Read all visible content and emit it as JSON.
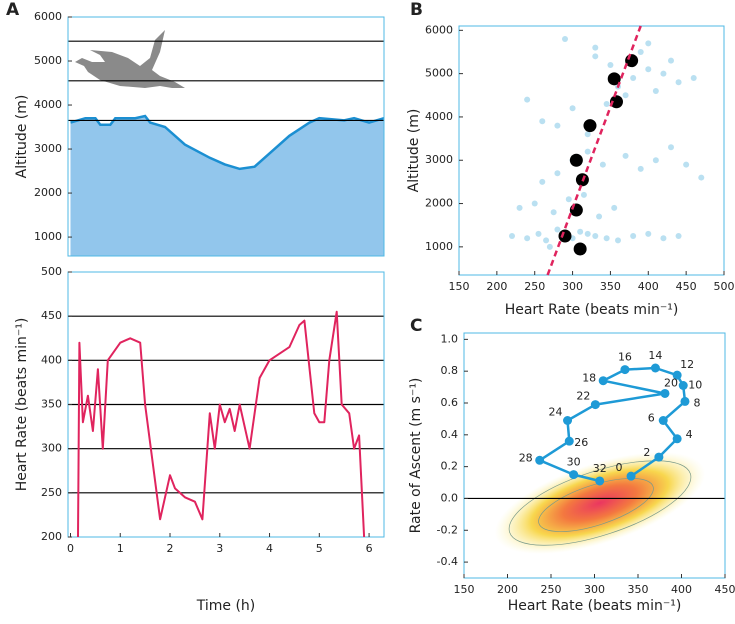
{
  "chart_data": [
    {
      "type": "area",
      "panel": "A",
      "ylabel": "Altitude (m)",
      "x": [
        0,
        0.3,
        0.5,
        0.6,
        0.8,
        0.9,
        1.3,
        1.5,
        1.6,
        1.9,
        2.3,
        2.8,
        3.1,
        3.4,
        3.7,
        4.0,
        4.4,
        4.8,
        5.0,
        5.5,
        5.7,
        6.0,
        6.3
      ],
      "values": [
        3600,
        3700,
        3700,
        3550,
        3550,
        3700,
        3700,
        3750,
        3600,
        3500,
        3100,
        2800,
        2650,
        2550,
        2600,
        2900,
        3300,
        3600,
        3700,
        3650,
        3700,
        3600,
        3700
      ],
      "color": "#92c6ec",
      "line_color": "#1b8fd2",
      "xlim": [
        -0.05,
        6.3
      ],
      "ylim": [
        570,
        6000
      ],
      "yticks": [
        1000,
        2000,
        3000,
        4000,
        5000,
        6000
      ],
      "hlines": [
        3650,
        4550,
        5450
      ]
    },
    {
      "type": "line",
      "ylabel": "Heart Rate (beats min⁻¹)",
      "xlabel": "Time (h)",
      "x": [
        0.15,
        0.18,
        0.25,
        0.35,
        0.45,
        0.55,
        0.65,
        0.75,
        1.0,
        1.2,
        1.4,
        1.5,
        1.8,
        2.0,
        2.1,
        2.3,
        2.5,
        2.65,
        2.8,
        2.9,
        3.0,
        3.1,
        3.2,
        3.3,
        3.4,
        3.6,
        3.8,
        4.0,
        4.4,
        4.6,
        4.7,
        4.9,
        5.0,
        5.1,
        5.2,
        5.35,
        5.45,
        5.6,
        5.7,
        5.8,
        5.9
      ],
      "values": [
        200,
        420,
        330,
        360,
        320,
        390,
        300,
        400,
        420,
        425,
        420,
        350,
        220,
        270,
        255,
        245,
        240,
        220,
        340,
        300,
        350,
        330,
        345,
        320,
        350,
        300,
        380,
        400,
        415,
        440,
        445,
        340,
        330,
        330,
        400,
        455,
        350,
        340,
        300,
        315,
        200
      ],
      "color": "#e0245e",
      "xlim": [
        -0.05,
        6.3
      ],
      "ylim": [
        200,
        500
      ],
      "xticks": [
        0,
        1,
        2,
        3,
        4,
        5,
        6
      ],
      "yticks": [
        200,
        250,
        300,
        350,
        400,
        450,
        500
      ],
      "hlines": [
        250,
        300,
        350,
        400,
        450
      ]
    },
    {
      "type": "scatter",
      "panel": "B",
      "ylabel": "Altitude (m)",
      "xlabel": "Heart Rate (beats min⁻¹)",
      "series": [
        {
          "color": "#3aa6d8",
          "x": [
            220,
            240,
            255,
            265,
            270,
            280,
            290,
            300,
            310,
            320,
            330,
            345,
            360,
            380,
            400,
            420,
            440,
            230,
            250,
            275,
            295,
            315,
            335,
            355,
            300,
            280,
            260,
            320,
            340,
            370,
            390,
            410,
            430,
            450,
            470,
            360,
            380,
            400,
            420,
            440,
            350,
            330,
            390,
            410,
            370,
            345,
            300,
            280,
            320,
            260,
            240,
            400,
            430,
            460,
            290,
            330
          ],
          "values": [
            1250,
            1200,
            1300,
            1150,
            1000,
            1400,
            1250,
            1200,
            1350,
            1300,
            1250,
            1200,
            1150,
            1250,
            1300,
            1200,
            1250,
            1900,
            2000,
            1800,
            2100,
            2200,
            1700,
            1900,
            3000,
            2700,
            2500,
            3200,
            2900,
            3100,
            2800,
            3000,
            3300,
            2900,
            2600,
            4700,
            4900,
            5100,
            5000,
            4800,
            5200,
            5400,
            5500,
            4600,
            4500,
            4300,
            4200,
            3800,
            3600,
            3900,
            4400,
            5700,
            5300,
            4900,
            5800,
            5600
          ]
        },
        {
          "color": "#000000",
          "x": [
            310,
            290,
            305,
            313,
            305,
            323,
            358,
            355,
            378
          ],
          "values": [
            950,
            1250,
            1850,
            2550,
            3000,
            3800,
            4350,
            4880,
            5300
          ]
        }
      ],
      "fit": {
        "x": [
          267,
          390
        ],
        "y": [
          350,
          6100
        ],
        "color": "#e0245e"
      },
      "xlim": [
        150,
        500
      ],
      "ylim": [
        350,
        6100
      ],
      "xticks": [
        150,
        200,
        250,
        300,
        350,
        400,
        450,
        500
      ],
      "yticks": [
        1000,
        2000,
        3000,
        4000,
        5000,
        6000
      ]
    },
    {
      "type": "line",
      "panel": "C",
      "ylabel": "Rate of Ascent (m s⁻¹)",
      "xlabel": "Heart Rate (beats min⁻¹)",
      "x": [
        342,
        374,
        395,
        379,
        404,
        402,
        395,
        370,
        335,
        310,
        381,
        301,
        269,
        271,
        237,
        276,
        306
      ],
      "values": [
        0.14,
        0.26,
        0.375,
        0.49,
        0.61,
        0.71,
        0.775,
        0.82,
        0.81,
        0.74,
        0.66,
        0.59,
        0.49,
        0.36,
        0.24,
        0.15,
        0.11
      ],
      "point_labels": [
        0,
        2,
        4,
        6,
        8,
        10,
        12,
        14,
        16,
        18,
        20,
        22,
        24,
        26,
        28,
        30,
        32
      ],
      "color": "#1e9ad6",
      "markers": true,
      "xlim": [
        150,
        450
      ],
      "ylim": [
        -0.5,
        1.04
      ],
      "xticks": [
        150,
        200,
        250,
        300,
        350,
        400,
        450
      ],
      "yticks": [
        -0.4,
        -0.2,
        {
          "value": 0,
          "label": "0.0"
        },
        0.2,
        0.4,
        0.6,
        0.8,
        {
          "value": 1,
          "label": "1.0"
        }
      ],
      "hlines": [
        0
      ]
    }
  ]
}
